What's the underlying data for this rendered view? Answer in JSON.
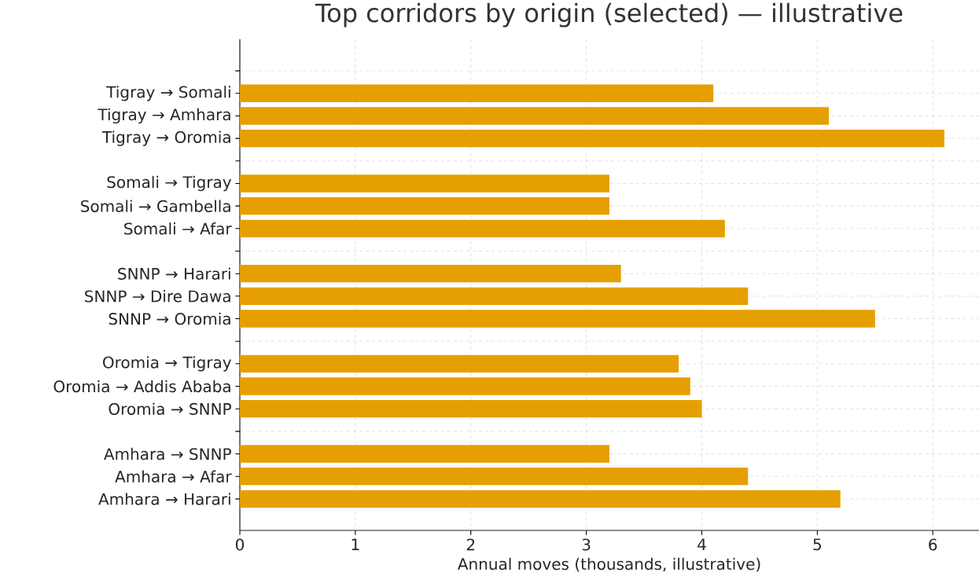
{
  "chart_data": {
    "type": "bar",
    "orientation": "horizontal",
    "title": "Top corridors by origin (selected) — illustrative",
    "xlabel": "Annual moves (thousands, illustrative)",
    "categories": [
      null,
      "Tigray → Somali",
      "Tigray → Amhara",
      "Tigray → Oromia",
      null,
      "Somali → Tigray",
      "Somali → Gambella",
      "Somali → Afar",
      null,
      "SNNP → Harari",
      "SNNP → Dire Dawa",
      "SNNP → Oromia",
      null,
      "Oromia → Tigray",
      "Oromia → Addis Ababa",
      "Oromia → SNNP",
      null,
      "Amhara → SNNP",
      "Amhara → Afar",
      "Amhara → Harari"
    ],
    "values": [
      null,
      4.1,
      5.1,
      6.1,
      null,
      3.2,
      3.2,
      4.2,
      null,
      3.3,
      4.4,
      5.5,
      null,
      3.8,
      3.9,
      4.0,
      null,
      3.2,
      4.4,
      5.2
    ],
    "color": "#e69f00",
    "xlim": [
      0,
      6.4
    ],
    "xticks": [
      0,
      1,
      2,
      3,
      4,
      5,
      6
    ],
    "grid": true
  }
}
